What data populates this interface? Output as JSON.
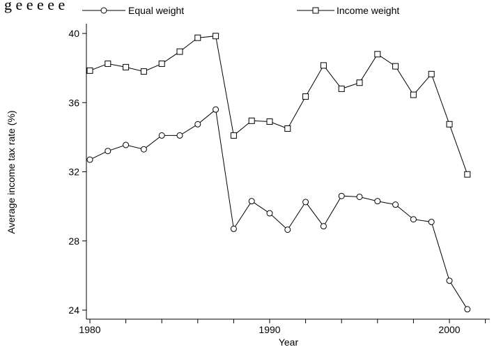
{
  "page": {
    "cropped_caption": "g  e e  e e  e"
  },
  "chart_data": {
    "type": "line",
    "title": "",
    "xlabel": "Year",
    "ylabel": "Average income tax rate (%)",
    "xlim": [
      1979.8,
      2002.1
    ],
    "ylim": [
      23.8,
      40.8
    ],
    "x_ticks": [
      1980,
      1990,
      2000
    ],
    "x_minor_ticks": [
      1982,
      1984,
      1986,
      1988,
      1992,
      1994,
      1996,
      1998,
      2002
    ],
    "y_ticks": [
      24,
      28,
      32,
      36,
      40
    ],
    "grid": false,
    "legend_position": "top",
    "x": [
      1980,
      1981,
      1982,
      1983,
      1984,
      1985,
      1986,
      1987,
      1988,
      1989,
      1990,
      1991,
      1992,
      1993,
      1994,
      1995,
      1996,
      1997,
      1998,
      1999,
      2000,
      2001
    ],
    "series": [
      {
        "name": "Equal weight",
        "marker": "circle",
        "color": "#000000",
        "values": [
          32.7,
          33.2,
          33.55,
          33.3,
          34.1,
          34.1,
          34.75,
          35.6,
          28.7,
          30.3,
          29.6,
          28.65,
          30.25,
          28.85,
          30.6,
          30.55,
          30.3,
          30.1,
          29.25,
          29.1,
          25.7,
          24.05
        ]
      },
      {
        "name": "Income weight",
        "marker": "square",
        "color": "#000000",
        "values": [
          37.85,
          38.25,
          38.05,
          37.8,
          38.25,
          38.95,
          39.75,
          39.85,
          34.1,
          34.95,
          34.9,
          34.5,
          36.35,
          38.15,
          36.8,
          37.15,
          38.8,
          38.1,
          36.45,
          37.65,
          34.75,
          31.85
        ]
      }
    ]
  }
}
